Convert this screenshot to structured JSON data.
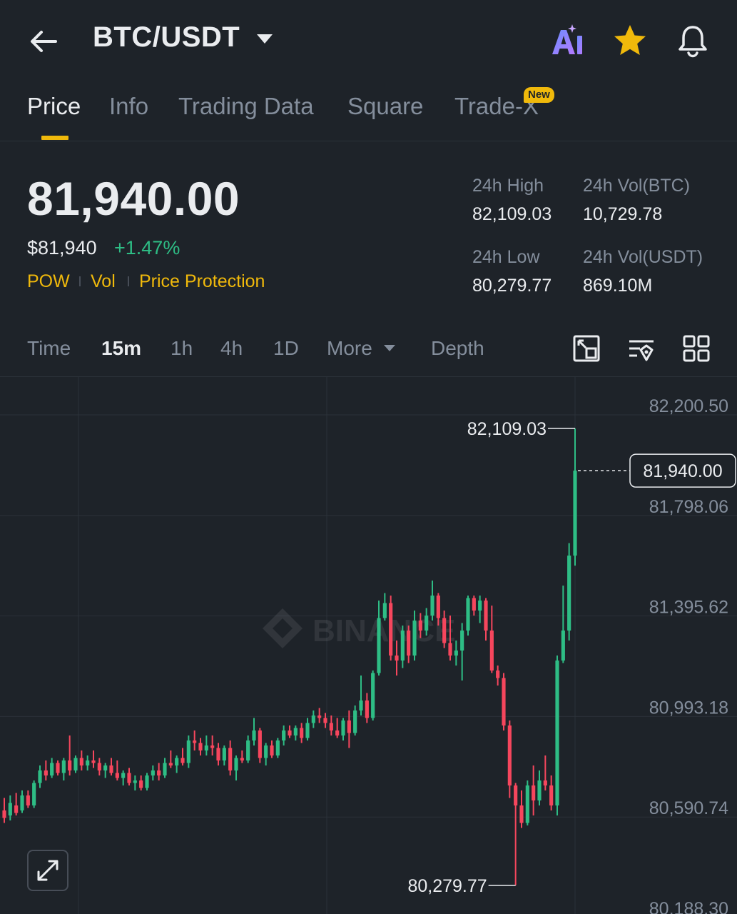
{
  "header": {
    "pair": "BTC/USDT",
    "icons": [
      "back-arrow-icon",
      "ai-icon",
      "star-icon",
      "bell-icon"
    ]
  },
  "tabs": [
    {
      "label": "Price",
      "active": true
    },
    {
      "label": "Info"
    },
    {
      "label": "Trading Data"
    },
    {
      "label": "Square"
    },
    {
      "label": "Trade-X",
      "badge": "New"
    }
  ],
  "price": {
    "last": "81,940.00",
    "usd": "$81,940",
    "change": "+1.47%",
    "tags": [
      "POW",
      "Vol",
      "Price Protection"
    ]
  },
  "stats": {
    "high_label": "24h High",
    "high_value": "82,109.03",
    "vol_btc_label": "24h Vol(BTC)",
    "vol_btc_value": "10,729.78",
    "low_label": "24h Low",
    "low_value": "80,279.77",
    "vol_usdt_label": "24h Vol(USDT)",
    "vol_usdt_value": "869.10M"
  },
  "intervals": {
    "time": "Time",
    "m15": "15m",
    "h1": "1h",
    "h4": "4h",
    "d1": "1D",
    "more": "More",
    "depth": "Depth"
  },
  "colors": {
    "background": "#1e2329",
    "up": "#2ebd85",
    "down": "#f6465d",
    "accent": "#f0b90b",
    "muted": "#848e9c"
  },
  "chart_data": {
    "type": "candlestick",
    "interval": "15m",
    "y_ticks": [
      82200.5,
      81798.06,
      81395.62,
      80993.18,
      80590.74,
      80188.3
    ],
    "y_tick_labels": [
      "82,200.50",
      "81,798.06",
      "81,395.62",
      "80,993.18",
      "80,590.74",
      "80,188.30"
    ],
    "ylim": [
      80140,
      82300
    ],
    "last_price_label": "81,940.00",
    "last_price": 81940.0,
    "high_label": "82,109.03",
    "high": 82109.03,
    "low_label": "80,279.77",
    "low": 80279.77,
    "watermark": "BINANCE",
    "candles": [
      {
        "o": 80580,
        "h": 80630,
        "l": 80530,
        "c": 80550
      },
      {
        "o": 80560,
        "h": 80640,
        "l": 80540,
        "c": 80610
      },
      {
        "o": 80600,
        "h": 80650,
        "l": 80560,
        "c": 80570
      },
      {
        "o": 80580,
        "h": 80660,
        "l": 80570,
        "c": 80640
      },
      {
        "o": 80640,
        "h": 80660,
        "l": 80590,
        "c": 80600
      },
      {
        "o": 80600,
        "h": 80700,
        "l": 80590,
        "c": 80690
      },
      {
        "o": 80690,
        "h": 80760,
        "l": 80670,
        "c": 80740
      },
      {
        "o": 80740,
        "h": 80780,
        "l": 80700,
        "c": 80720
      },
      {
        "o": 80720,
        "h": 80790,
        "l": 80710,
        "c": 80770
      },
      {
        "o": 80770,
        "h": 80780,
        "l": 80720,
        "c": 80730
      },
      {
        "o": 80730,
        "h": 80790,
        "l": 80700,
        "c": 80780
      },
      {
        "o": 80780,
        "h": 80880,
        "l": 80720,
        "c": 80740
      },
      {
        "o": 80740,
        "h": 80800,
        "l": 80730,
        "c": 80790
      },
      {
        "o": 80790,
        "h": 80820,
        "l": 80740,
        "c": 80760
      },
      {
        "o": 80760,
        "h": 80800,
        "l": 80740,
        "c": 80780
      },
      {
        "o": 80780,
        "h": 80820,
        "l": 80750,
        "c": 80770
      },
      {
        "o": 80770,
        "h": 80790,
        "l": 80720,
        "c": 80740
      },
      {
        "o": 80740,
        "h": 80770,
        "l": 80710,
        "c": 80760
      },
      {
        "o": 80760,
        "h": 80790,
        "l": 80720,
        "c": 80730
      },
      {
        "o": 80730,
        "h": 80780,
        "l": 80700,
        "c": 80710
      },
      {
        "o": 80710,
        "h": 80740,
        "l": 80680,
        "c": 80730
      },
      {
        "o": 80730,
        "h": 80750,
        "l": 80680,
        "c": 80690
      },
      {
        "o": 80690,
        "h": 80720,
        "l": 80660,
        "c": 80700
      },
      {
        "o": 80700,
        "h": 80720,
        "l": 80660,
        "c": 80670
      },
      {
        "o": 80670,
        "h": 80730,
        "l": 80660,
        "c": 80720
      },
      {
        "o": 80720,
        "h": 80760,
        "l": 80700,
        "c": 80740
      },
      {
        "o": 80740,
        "h": 80770,
        "l": 80700,
        "c": 80720
      },
      {
        "o": 80720,
        "h": 80790,
        "l": 80710,
        "c": 80770
      },
      {
        "o": 80770,
        "h": 80820,
        "l": 80750,
        "c": 80760
      },
      {
        "o": 80760,
        "h": 80800,
        "l": 80730,
        "c": 80790
      },
      {
        "o": 80790,
        "h": 80830,
        "l": 80760,
        "c": 80770
      },
      {
        "o": 80770,
        "h": 80880,
        "l": 80750,
        "c": 80860
      },
      {
        "o": 80860,
        "h": 80900,
        "l": 80820,
        "c": 80850
      },
      {
        "o": 80850,
        "h": 80870,
        "l": 80800,
        "c": 80820
      },
      {
        "o": 80820,
        "h": 80880,
        "l": 80800,
        "c": 80840
      },
      {
        "o": 80840,
        "h": 80880,
        "l": 80800,
        "c": 80830
      },
      {
        "o": 80830,
        "h": 80850,
        "l": 80760,
        "c": 80780
      },
      {
        "o": 80780,
        "h": 80840,
        "l": 80760,
        "c": 80830
      },
      {
        "o": 80830,
        "h": 80860,
        "l": 80720,
        "c": 80740
      },
      {
        "o": 80740,
        "h": 80800,
        "l": 80700,
        "c": 80790
      },
      {
        "o": 80790,
        "h": 80820,
        "l": 80770,
        "c": 80780
      },
      {
        "o": 80780,
        "h": 80880,
        "l": 80770,
        "c": 80860
      },
      {
        "o": 80860,
        "h": 80950,
        "l": 80840,
        "c": 80900
      },
      {
        "o": 80900,
        "h": 80910,
        "l": 80770,
        "c": 80790
      },
      {
        "o": 80790,
        "h": 80850,
        "l": 80760,
        "c": 80840
      },
      {
        "o": 80840,
        "h": 80860,
        "l": 80790,
        "c": 80800
      },
      {
        "o": 80800,
        "h": 80870,
        "l": 80790,
        "c": 80860
      },
      {
        "o": 80860,
        "h": 80920,
        "l": 80840,
        "c": 80900
      },
      {
        "o": 80900,
        "h": 80920,
        "l": 80870,
        "c": 80880
      },
      {
        "o": 80880,
        "h": 80920,
        "l": 80860,
        "c": 80910
      },
      {
        "o": 80910,
        "h": 80930,
        "l": 80850,
        "c": 80870
      },
      {
        "o": 80870,
        "h": 80950,
        "l": 80860,
        "c": 80930
      },
      {
        "o": 80930,
        "h": 80980,
        "l": 80910,
        "c": 80960
      },
      {
        "o": 80960,
        "h": 80990,
        "l": 80930,
        "c": 80950
      },
      {
        "o": 80950,
        "h": 80970,
        "l": 80910,
        "c": 80930
      },
      {
        "o": 80930,
        "h": 80960,
        "l": 80880,
        "c": 80900
      },
      {
        "o": 80900,
        "h": 80950,
        "l": 80870,
        "c": 80880
      },
      {
        "o": 80880,
        "h": 80950,
        "l": 80860,
        "c": 80940
      },
      {
        "o": 80940,
        "h": 80980,
        "l": 80830,
        "c": 80890
      },
      {
        "o": 80890,
        "h": 81000,
        "l": 80880,
        "c": 80980
      },
      {
        "o": 80980,
        "h": 81120,
        "l": 80960,
        "c": 81020
      },
      {
        "o": 81020,
        "h": 81050,
        "l": 80930,
        "c": 80950
      },
      {
        "o": 80950,
        "h": 81140,
        "l": 80940,
        "c": 81130
      },
      {
        "o": 81130,
        "h": 81420,
        "l": 81120,
        "c": 81350
      },
      {
        "o": 81350,
        "h": 81450,
        "l": 81340,
        "c": 81410
      },
      {
        "o": 81410,
        "h": 81440,
        "l": 81180,
        "c": 81200
      },
      {
        "o": 81200,
        "h": 81260,
        "l": 81120,
        "c": 81180
      },
      {
        "o": 81180,
        "h": 81320,
        "l": 81150,
        "c": 81300
      },
      {
        "o": 81300,
        "h": 81320,
        "l": 81170,
        "c": 81200
      },
      {
        "o": 81200,
        "h": 81380,
        "l": 81180,
        "c": 81340
      },
      {
        "o": 81340,
        "h": 81370,
        "l": 81270,
        "c": 81300
      },
      {
        "o": 81300,
        "h": 81390,
        "l": 81280,
        "c": 81360
      },
      {
        "o": 81360,
        "h": 81500,
        "l": 81340,
        "c": 81440
      },
      {
        "o": 81440,
        "h": 81450,
        "l": 81320,
        "c": 81350
      },
      {
        "o": 81350,
        "h": 81380,
        "l": 81230,
        "c": 81250
      },
      {
        "o": 81250,
        "h": 81360,
        "l": 81180,
        "c": 81200
      },
      {
        "o": 81200,
        "h": 81260,
        "l": 81160,
        "c": 81220
      },
      {
        "o": 81220,
        "h": 81330,
        "l": 81100,
        "c": 81300
      },
      {
        "o": 81300,
        "h": 81440,
        "l": 81280,
        "c": 81430
      },
      {
        "o": 81430,
        "h": 81440,
        "l": 81360,
        "c": 81380
      },
      {
        "o": 81380,
        "h": 81440,
        "l": 81330,
        "c": 81420
      },
      {
        "o": 81420,
        "h": 81430,
        "l": 81260,
        "c": 81300
      },
      {
        "o": 81300,
        "h": 81400,
        "l": 81130,
        "c": 81140
      },
      {
        "o": 81140,
        "h": 81160,
        "l": 81080,
        "c": 81110
      },
      {
        "o": 81110,
        "h": 81130,
        "l": 80900,
        "c": 80920
      },
      {
        "o": 80920,
        "h": 80940,
        "l": 80630,
        "c": 80680
      },
      {
        "o": 80680,
        "h": 80690,
        "l": 80280,
        "c": 80600
      },
      {
        "o": 80600,
        "h": 80660,
        "l": 80510,
        "c": 80530
      },
      {
        "o": 80530,
        "h": 80700,
        "l": 80520,
        "c": 80680
      },
      {
        "o": 80680,
        "h": 80760,
        "l": 80560,
        "c": 80620
      },
      {
        "o": 80620,
        "h": 80740,
        "l": 80600,
        "c": 80700
      },
      {
        "o": 80700,
        "h": 80800,
        "l": 80660,
        "c": 80680
      },
      {
        "o": 80680,
        "h": 80720,
        "l": 80580,
        "c": 80600
      },
      {
        "o": 80600,
        "h": 81200,
        "l": 80560,
        "c": 81180
      },
      {
        "o": 81180,
        "h": 81480,
        "l": 81170,
        "c": 81300
      },
      {
        "o": 81300,
        "h": 81650,
        "l": 81260,
        "c": 81600
      },
      {
        "o": 81600,
        "h": 82109.03,
        "l": 81560,
        "c": 81940
      }
    ]
  }
}
